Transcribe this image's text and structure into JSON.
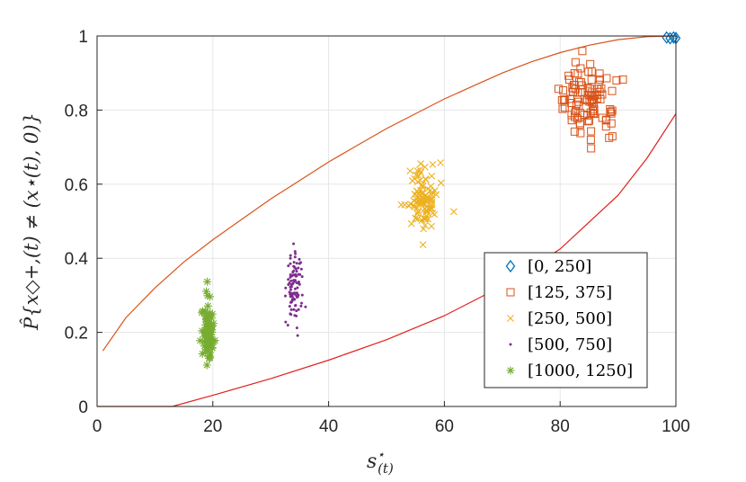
{
  "chart_data": {
    "type": "scatter",
    "title": "",
    "xlabel": "s⋆(t)",
    "ylabel": "P̂{x◇+,(t) ≠ (x⋆(t), 0)}",
    "xlim": [
      0,
      100
    ],
    "ylim": [
      0,
      1
    ],
    "xticks": [
      "0",
      "20",
      "40",
      "60",
      "80",
      "100"
    ],
    "yticks": [
      "0",
      "0.2",
      "0.4",
      "0.6",
      "0.8",
      "1"
    ],
    "grid": true,
    "legend_position": "bottom-right",
    "series": [
      {
        "name": "[0, 250]",
        "marker": "diamond",
        "color": "#0072BD",
        "cluster": {
          "x_center": 99.3,
          "x_spread": 0.6,
          "y_center": 0.995,
          "y_spread": 0.004,
          "count": 4
        }
      },
      {
        "name": "[125, 375]",
        "marker": "square",
        "color": "#D95319",
        "cluster": {
          "x_center": 84.5,
          "x_spread": 2.4,
          "y_center": 0.83,
          "y_spread": 0.05,
          "count": 100
        }
      },
      {
        "name": "[250, 500]",
        "marker": "x",
        "color": "#EDB120",
        "cluster": {
          "x_center": 56.3,
          "x_spread": 1.2,
          "y_center": 0.56,
          "y_spread": 0.055,
          "count": 100
        }
      },
      {
        "name": "[500, 750]",
        "marker": "dot",
        "color": "#7E2F8E",
        "cluster": {
          "x_center": 34.0,
          "x_spread": 0.6,
          "y_center": 0.32,
          "y_spread": 0.05,
          "count": 100
        }
      },
      {
        "name": "[1000, 1250]",
        "marker": "asterisk",
        "color": "#77AC30",
        "cluster": {
          "x_center": 19.2,
          "x_spread": 0.5,
          "y_center": 0.2,
          "y_spread": 0.04,
          "count": 100
        }
      }
    ],
    "bound_curves": [
      {
        "name": "upper-bound",
        "color": "#D95319",
        "points": [
          [
            1,
            0.15
          ],
          [
            5,
            0.24
          ],
          [
            10,
            0.32
          ],
          [
            15,
            0.39
          ],
          [
            20,
            0.45
          ],
          [
            25,
            0.505
          ],
          [
            30,
            0.56
          ],
          [
            35,
            0.61
          ],
          [
            40,
            0.66
          ],
          [
            45,
            0.705
          ],
          [
            50,
            0.75
          ],
          [
            55,
            0.79
          ],
          [
            60,
            0.83
          ],
          [
            65,
            0.865
          ],
          [
            70,
            0.9
          ],
          [
            75,
            0.93
          ],
          [
            80,
            0.955
          ],
          [
            85,
            0.975
          ],
          [
            90,
            0.99
          ],
          [
            95,
            0.998
          ],
          [
            100,
            1.0
          ]
        ]
      },
      {
        "name": "lower-bound",
        "color": "#E0201B",
        "points": [
          [
            0,
            0
          ],
          [
            13,
            0
          ],
          [
            20,
            0.03
          ],
          [
            30,
            0.075
          ],
          [
            40,
            0.125
          ],
          [
            50,
            0.18
          ],
          [
            60,
            0.245
          ],
          [
            70,
            0.325
          ],
          [
            80,
            0.425
          ],
          [
            90,
            0.57
          ],
          [
            95,
            0.67
          ],
          [
            100,
            0.79
          ]
        ]
      }
    ]
  }
}
